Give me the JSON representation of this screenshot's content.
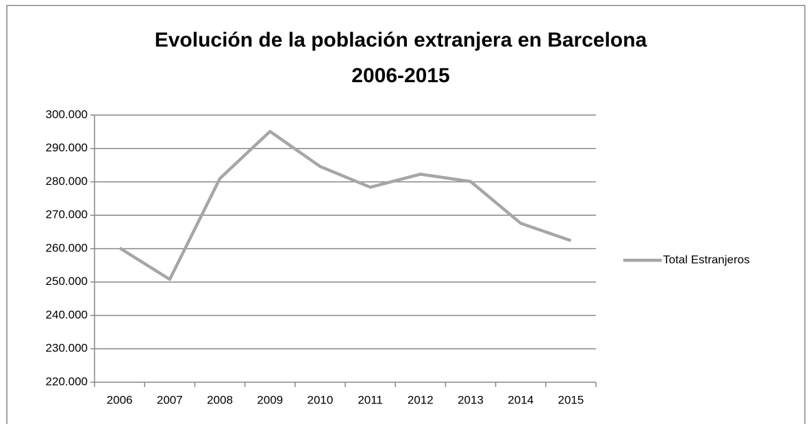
{
  "chart_data": {
    "type": "line",
    "title": [
      "Evolución de la población extranjera en Barcelona",
      "2006-2015"
    ],
    "categories": [
      "2006",
      "2007",
      "2008",
      "2009",
      "2010",
      "2011",
      "2012",
      "2013",
      "2014",
      "2015"
    ],
    "series": [
      {
        "name": "Total Estranjeros",
        "color": "#a6a6a6",
        "values": [
          260200,
          250800,
          281000,
          295100,
          284600,
          278400,
          282300,
          280100,
          267600,
          262400
        ]
      }
    ],
    "ylim": [
      220000,
      300000
    ],
    "yticks": [
      {
        "value": 220000,
        "label": "220.000"
      },
      {
        "value": 230000,
        "label": "230.000"
      },
      {
        "value": 240000,
        "label": "240.000"
      },
      {
        "value": 250000,
        "label": "250.000"
      },
      {
        "value": 260000,
        "label": "260.000"
      },
      {
        "value": 270000,
        "label": "270.000"
      },
      {
        "value": 280000,
        "label": "280.000"
      },
      {
        "value": 290000,
        "label": "290.000"
      },
      {
        "value": 300000,
        "label": "300.000"
      }
    ],
    "grid": true,
    "legend": "right"
  }
}
